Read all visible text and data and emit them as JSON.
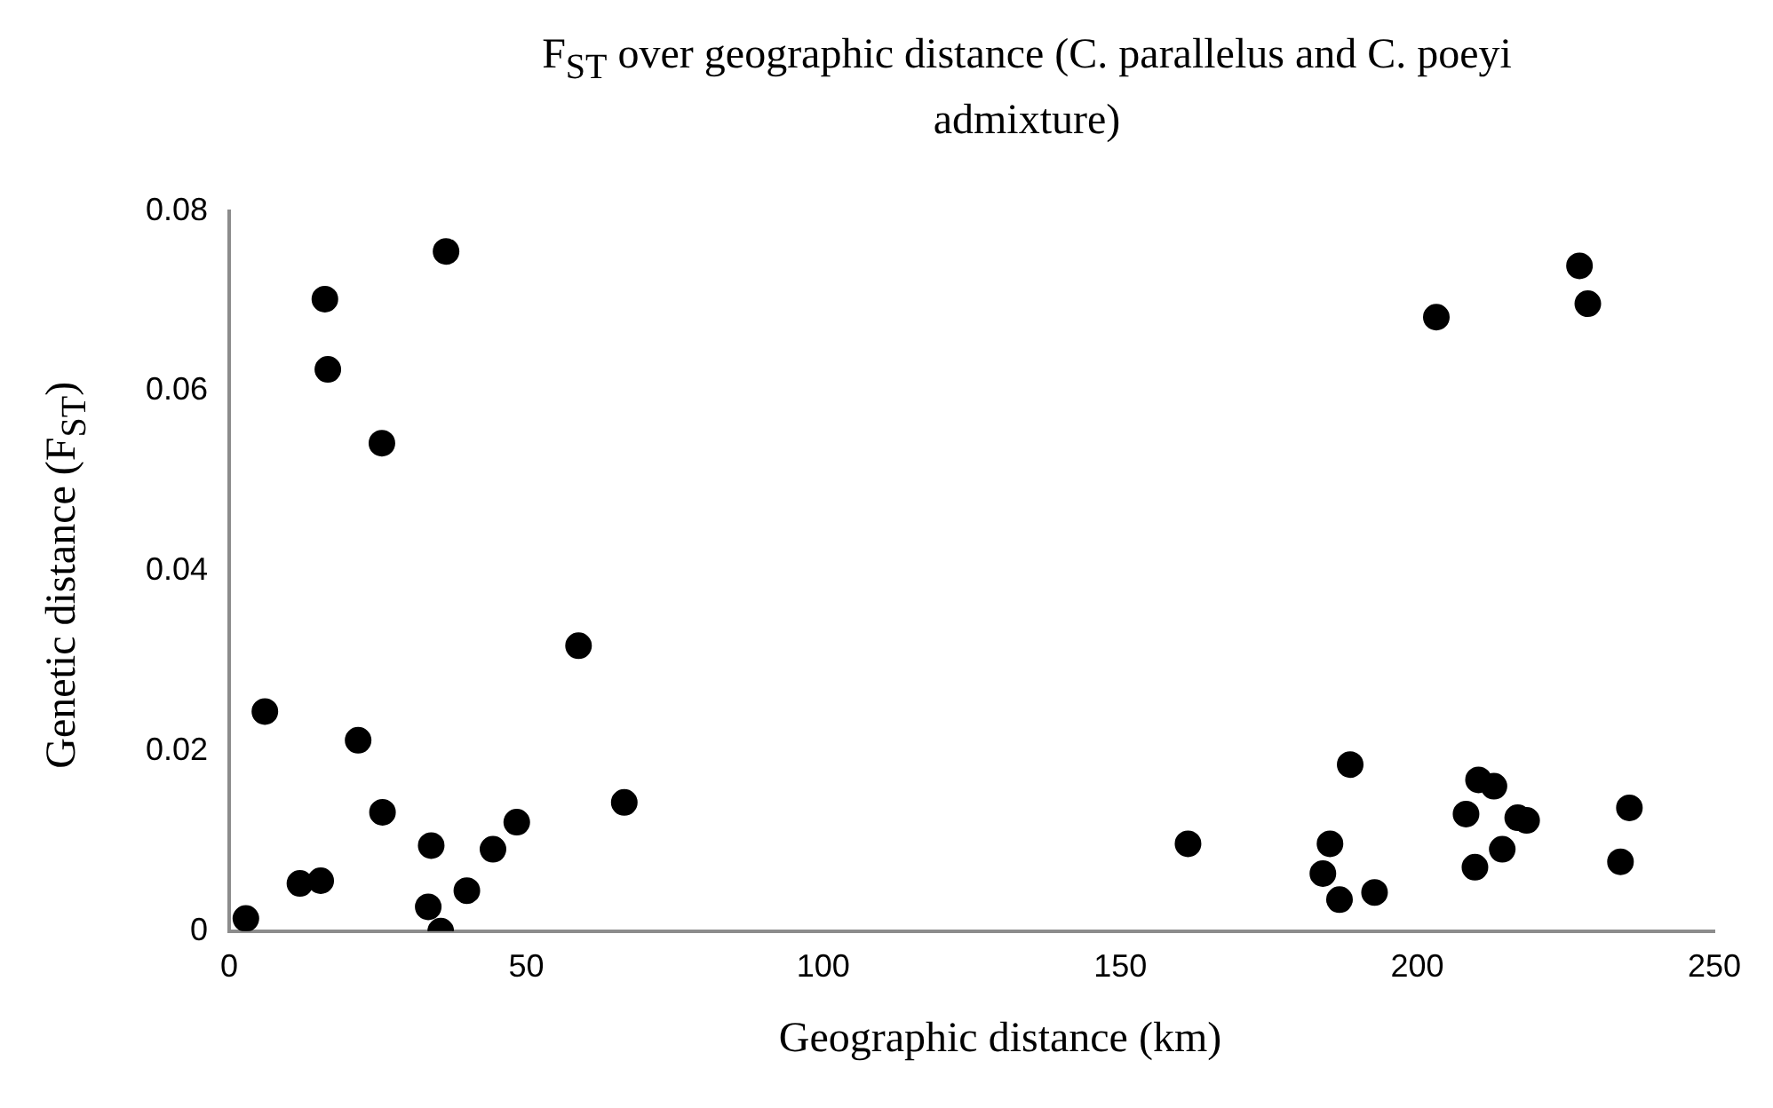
{
  "chart_data": {
    "type": "scatter",
    "title": "F$_{ST}$ over geographic distance (C. parallelus and C. poeyi admixture)",
    "xlabel": "Geographic distance (km)",
    "ylabel": "Genetic distance (F$_{ST}$)",
    "x": [
      2.8,
      6.0,
      11.9,
      15.4,
      21.7,
      25.8,
      34.0,
      33.5,
      35.6,
      40.0,
      44.4,
      48.4,
      58.8,
      66.5,
      36.5,
      16.1,
      16.6,
      25.7,
      203.2,
      227.3,
      228.7,
      161.4,
      185.3,
      184.1,
      186.9,
      188.7,
      192.8,
      208.2,
      209.7,
      210.3,
      212.9,
      214.3,
      216.9,
      218.4,
      235.7,
      234.2
    ],
    "values": [
      0.0014,
      0.0244,
      0.0053,
      0.0056,
      0.0212,
      0.0132,
      0.0095,
      0.0027,
      0.0,
      0.0045,
      0.0091,
      0.0121,
      0.0317,
      0.0143,
      0.0755,
      0.0702,
      0.0624,
      0.0542,
      0.0682,
      0.0739,
      0.0697,
      0.0097,
      0.0097,
      0.0064,
      0.0035,
      0.0185,
      0.0043,
      0.013,
      0.0071,
      0.0168,
      0.0161,
      0.0091,
      0.0126,
      0.0123,
      0.0137,
      0.0077
    ],
    "color": "#000000",
    "marker": "circle",
    "xlim": [
      0,
      250
    ],
    "ylim": [
      0,
      0.08
    ],
    "xticks": [
      0,
      50,
      100,
      150,
      200,
      250
    ],
    "yticks": [
      0,
      0.02,
      0.04,
      0.06,
      0.08
    ],
    "grid": false,
    "legend": false
  }
}
